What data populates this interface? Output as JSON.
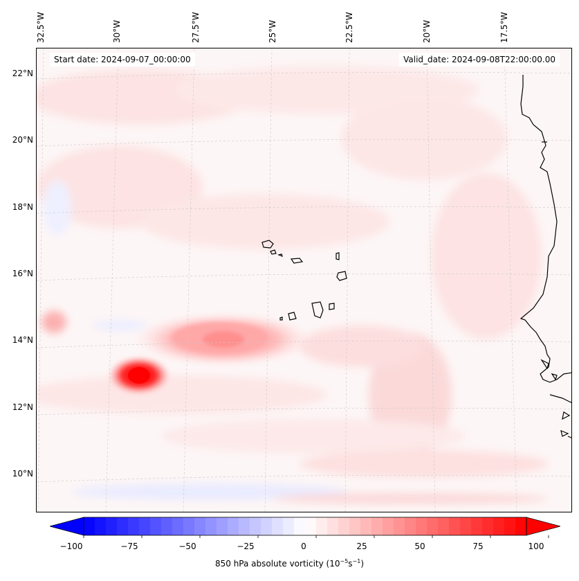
{
  "map": {
    "header": {
      "start_date": "Start date: 2024-09-07_00:00:00",
      "valid_date": "Valid_date: 2024-09-08T22:00:00.00"
    },
    "longitude_labels": [
      "32.5°W",
      "30°W",
      "27.5°W",
      "25°W",
      "22.5°W",
      "20°W",
      "17.5°W"
    ],
    "latitude_labels": [
      "22°N",
      "20°N",
      "18°N",
      "16°N",
      "14°N",
      "12°N",
      "10°N"
    ],
    "features": [
      "Cape Verde islands",
      "West African coastline"
    ],
    "colorbar": {
      "ticks": [
        "−100",
        "−75",
        "−50",
        "−25",
        "0",
        "25",
        "50",
        "75",
        "100"
      ],
      "label_main": "850 hPa absolute vorticity (10",
      "label_exp1": "−5",
      "label_mid": "s",
      "label_exp2": "−1",
      "label_end": ")",
      "colormap": "bwr",
      "min_color": "#0000ff",
      "mid_color": "#ffffff",
      "max_color": "#ff0000"
    }
  }
}
